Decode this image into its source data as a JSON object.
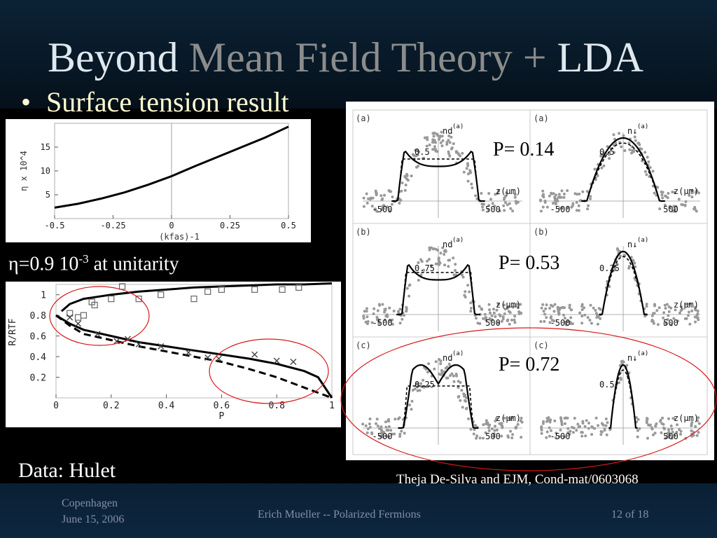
{
  "slide": {
    "title_part1": "Beyond ",
    "title_part2": "Mean Field Theory + ",
    "title_part3": "LDA",
    "title_colors": [
      "#dfe8ef",
      "#8c8c8c",
      "#dfe8ef"
    ],
    "bullet_symbol": "•",
    "bullet_text": "Surface tension result",
    "eta_prefix": "η=0.9 10",
    "eta_exp": "-3",
    "eta_suffix": " at unitarity",
    "data_credit": "Data: Hulet",
    "citation": "Theja De-Silva and EJM, Cond-mat/0603068",
    "p_labels": [
      "P= 0.14",
      "P= 0.53",
      "P=  0.72"
    ]
  },
  "footer": {
    "place": "Copenhagen",
    "date": "June 15, 2006",
    "author_talk": "Erich Mueller -- Polarized Fermions",
    "page": "12 of 18"
  },
  "chart_data": [
    {
      "type": "line",
      "title": "",
      "xlabel": "(kfas)-1",
      "ylabel": "η x 10^4",
      "xlim": [
        -0.5,
        0.5
      ],
      "ylim": [
        0,
        20
      ],
      "x_ticks": [
        "-0.5",
        "-0.25",
        "0",
        "0.25",
        "0.5"
      ],
      "y_ticks": [
        "5",
        "10",
        "15"
      ],
      "series": [
        {
          "x": [
            -0.5,
            -0.4,
            -0.3,
            -0.2,
            -0.1,
            0,
            0.1,
            0.2,
            0.3,
            0.4,
            0.5
          ],
          "values": [
            2.3,
            3.1,
            4.2,
            5.5,
            7.1,
            8.9,
            11.0,
            13.0,
            15.0,
            17.0,
            19.3
          ]
        }
      ]
    },
    {
      "type": "scatter",
      "title": "",
      "xlabel": "P",
      "ylabel": "R/RTF",
      "xlim": [
        0,
        1
      ],
      "ylim": [
        0,
        1.1
      ],
      "x_ticks": [
        "0",
        "0.2",
        "0.4",
        "0.6",
        "0.8",
        "1"
      ],
      "y_ticks": [
        "0.2",
        "0.4",
        "0.6",
        "0.8",
        "1"
      ],
      "upper_curve": {
        "x": [
          0.02,
          0.05,
          0.1,
          0.2,
          0.3,
          0.4,
          0.5,
          0.6,
          0.7,
          0.8,
          0.9,
          1.0
        ],
        "values": [
          0.84,
          0.91,
          0.96,
          1.0,
          1.03,
          1.05,
          1.07,
          1.08,
          1.09,
          1.1,
          1.1,
          1.11
        ]
      },
      "lower_solid": {
        "x": [
          0.0,
          0.05,
          0.1,
          0.2,
          0.3,
          0.4,
          0.5,
          0.6,
          0.7,
          0.8,
          0.9,
          0.95,
          1.0
        ],
        "values": [
          0.8,
          0.72,
          0.66,
          0.6,
          0.54,
          0.5,
          0.46,
          0.42,
          0.38,
          0.33,
          0.26,
          0.2,
          0.0
        ]
      },
      "lower_dashed": {
        "x": [
          0.0,
          0.05,
          0.1,
          0.2,
          0.3,
          0.4,
          0.5,
          0.6,
          0.7,
          0.8,
          0.9,
          0.95,
          1.0
        ],
        "values": [
          0.8,
          0.7,
          0.62,
          0.56,
          0.5,
          0.45,
          0.4,
          0.35,
          0.28,
          0.2,
          0.1,
          0.05,
          0.0
        ]
      },
      "squares": {
        "x": [
          0.05,
          0.08,
          0.1,
          0.13,
          0.14,
          0.2,
          0.24,
          0.3,
          0.38,
          0.5,
          0.55,
          0.6,
          0.72,
          0.82,
          0.88
        ],
        "values": [
          0.82,
          0.78,
          0.8,
          0.93,
          0.9,
          0.96,
          1.08,
          0.96,
          1.0,
          0.96,
          1.03,
          1.05,
          1.05,
          1.05,
          1.07
        ]
      },
      "crosses": {
        "x": [
          0.05,
          0.08,
          0.15,
          0.22,
          0.26,
          0.3,
          0.38,
          0.48,
          0.55,
          0.59,
          0.72,
          0.8,
          0.86
        ],
        "values": [
          0.78,
          0.72,
          0.62,
          0.55,
          0.57,
          0.52,
          0.5,
          0.44,
          0.39,
          0.38,
          0.42,
          0.36,
          0.35
        ]
      }
    },
    {
      "type": "grid",
      "row_labels": [
        "(a)",
        "(b)",
        "(c)"
      ],
      "left_column": {
        "density_label": "nd",
        "density_sup": "(a)",
        "axis_label": "z(μm)",
        "peak_labels": [
          "0.5",
          "0.75",
          "0.25"
        ],
        "x_ticks": [
          "-500",
          "500"
        ]
      },
      "right_column": {
        "density_label": "n↓",
        "density_sup": "(a)",
        "axis_label": "z(μm)",
        "peak_labels": [
          "0.5",
          "0.25",
          "0.5"
        ],
        "x_ticks": [
          "-500",
          "500"
        ]
      }
    }
  ]
}
